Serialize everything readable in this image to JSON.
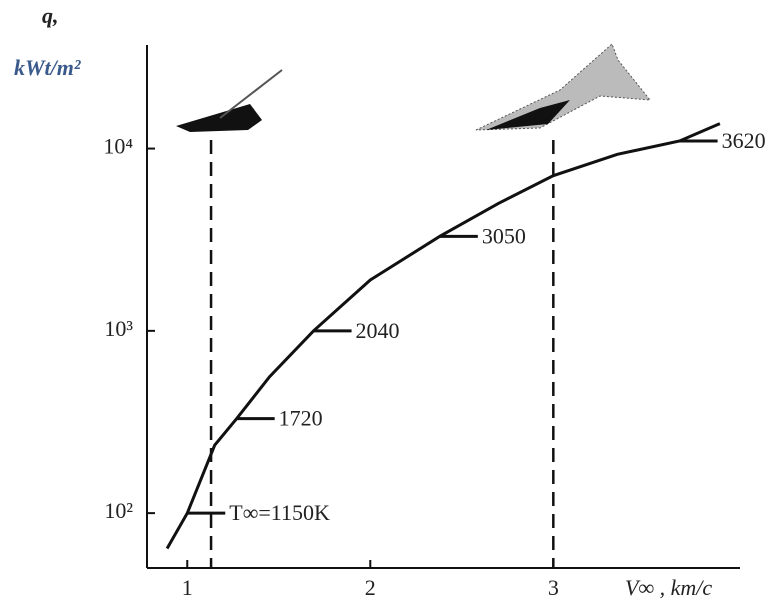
{
  "chart_data": {
    "type": "line",
    "y_label_top": "q,",
    "y_label_unit": "kWt/m²",
    "x_label": "V∞ , km/c",
    "log_y": true,
    "xlim": [
      0.78,
      4.02
    ],
    "ylim": [
      50,
      37000
    ],
    "xticks": [
      1,
      2,
      3
    ],
    "yticks": [
      {
        "value": 100,
        "label": "10²"
      },
      {
        "value": 1000,
        "label": "10³"
      },
      {
        "value": 10000,
        "label": "10⁴"
      }
    ],
    "series": [
      {
        "color": "#111111",
        "x": [
          0.89,
          1.0,
          1.15,
          1.27,
          1.45,
          1.69,
          2.0,
          2.38,
          2.7,
          3.0,
          3.35,
          3.69,
          3.91
        ],
        "values": [
          64,
          100,
          236,
          330,
          560,
          1000,
          1900,
          3300,
          5000,
          7100,
          9300,
          11000,
          13700
        ]
      }
    ],
    "reference_lines_x": [
      1.13,
      3.0
    ],
    "annotations": [
      {
        "text": "T∞=1150K",
        "x": 1.0,
        "y": 100
      },
      {
        "text": "1720",
        "x": 1.27,
        "y": 330
      },
      {
        "text": "2040",
        "x": 1.69,
        "y": 1000
      },
      {
        "text": "3050",
        "x": 2.38,
        "y": 3300
      },
      {
        "text": "3620",
        "x": 3.69,
        "y": 11000
      }
    ]
  }
}
